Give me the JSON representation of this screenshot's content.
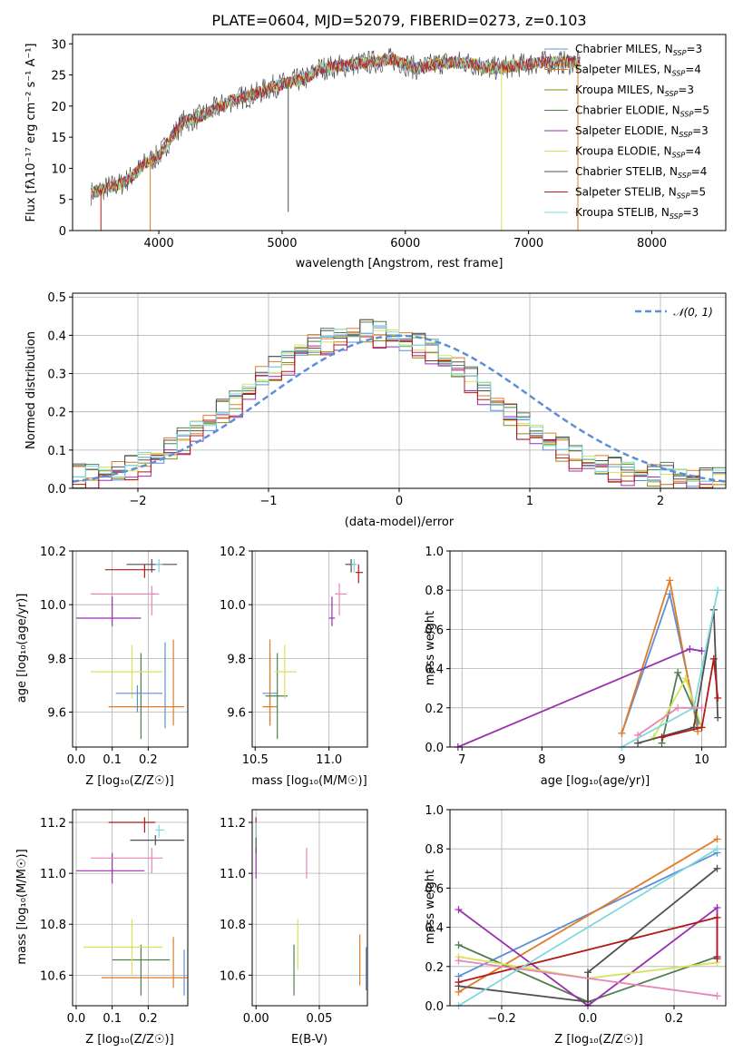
{
  "page_title": "PLATE=0604, MJD=52079, FIBERID=0273, z=0.103",
  "colors": {
    "grid": "#b0b0b0",
    "series": [
      "#5e8fd6",
      "#e07b26",
      "#8c8c13",
      "#4f7f4f",
      "#9a2fb0",
      "#d7e35a",
      "#505050",
      "#b21a1a",
      "#7fd8e0"
    ],
    "pink": "#e884b8",
    "normal": "#5b8fd6"
  },
  "legend_spectrum": [
    {
      "name": "Chabrier MILES, N",
      "sub": "SSP",
      "suffix": "=3"
    },
    {
      "name": "Salpeter MILES, N",
      "sub": "SSP",
      "suffix": "=4"
    },
    {
      "name": "Kroupa MILES, N",
      "sub": "SSP",
      "suffix": "=3"
    },
    {
      "name": "Chabrier ELODIE, N",
      "sub": "SSP",
      "suffix": "=5"
    },
    {
      "name": "Salpeter ELODIE, N",
      "sub": "SSP",
      "suffix": "=3"
    },
    {
      "name": "Kroupa ELODIE, N",
      "sub": "SSP",
      "suffix": "=4"
    },
    {
      "name": "Chabrier STELIB, N",
      "sub": "SSP",
      "suffix": "=4"
    },
    {
      "name": "Salpeter STELIB, N",
      "sub": "SSP",
      "suffix": "=5"
    },
    {
      "name": "Kroupa STELIB, N",
      "sub": "SSP",
      "suffix": "=3"
    }
  ],
  "legend_hist": "𝒩(0, 1)",
  "axes_labels": {
    "spec_x": "wavelength [Angstrom, rest frame]",
    "spec_y": "Flux [fλ10⁻¹⁷ erg cm⁻² s⁻¹ A⁻¹]",
    "hist_x": "(data-model)/error",
    "hist_y": "Normed distribution",
    "age_y": "age  [log₁₀(age/yr)]",
    "z_x": "Z [log₁₀(Z/Z☉)]",
    "mass_x": "mass [log₁₀(M/M☉)]",
    "mw_y": "mass weight",
    "age_x": "age  [log₁₀(age/yr)]",
    "mass_y": "mass [log₁₀(M/M☉)]",
    "ebv_x": "E(B-V)"
  },
  "chart_data": [
    {
      "type": "line",
      "panel": "spectrum",
      "x_ticks": [
        "4000",
        "5000",
        "6000",
        "7000",
        "8000"
      ],
      "y_ticks": [
        "0",
        "5",
        "10",
        "15",
        "20",
        "25",
        "30"
      ],
      "xlim": [
        3300,
        8600
      ],
      "ylim": [
        0,
        31.5
      ],
      "continuum": {
        "x": [
          3450,
          3600,
          3700,
          3800,
          3900,
          4000,
          4100,
          4200,
          4300,
          4400,
          4500,
          4600,
          4700,
          4800,
          4900,
          5000,
          5100,
          5200,
          5300,
          5500,
          5700,
          5900,
          6100,
          6300,
          6500,
          6700,
          6900,
          7100,
          7300,
          7420
        ],
        "y": [
          6,
          7,
          7.5,
          9,
          11,
          12,
          15,
          17.5,
          18,
          19,
          20,
          21,
          21.5,
          22,
          23,
          23.5,
          24,
          24.5,
          26,
          26.5,
          27,
          27.5,
          26,
          27,
          27,
          26,
          26.5,
          27,
          27,
          27
        ]
      }
    },
    {
      "type": "bar",
      "panel": "residual-histogram",
      "x_ticks": [
        "−2",
        "−1",
        "0",
        "1",
        "2"
      ],
      "y_ticks": [
        "0.0",
        "0.1",
        "0.2",
        "0.3",
        "0.4",
        "0.5"
      ],
      "xlim": [
        -2.5,
        2.5
      ],
      "ylim": [
        0,
        0.51
      ],
      "bin_width": 0.1,
      "model_profile": [
        0.03,
        0.03,
        0.035,
        0.04,
        0.05,
        0.065,
        0.08,
        0.1,
        0.12,
        0.15,
        0.17,
        0.2,
        0.22,
        0.25,
        0.29,
        0.31,
        0.33,
        0.36,
        0.37,
        0.38,
        0.39,
        0.4,
        0.41,
        0.4,
        0.39,
        0.38,
        0.37,
        0.36,
        0.33,
        0.31,
        0.28,
        0.25,
        0.22,
        0.19,
        0.16,
        0.14,
        0.12,
        0.1,
        0.08,
        0.065,
        0.055,
        0.045,
        0.04,
        0.035,
        0.03,
        0.03,
        0.025,
        0.025,
        0.02,
        0.02
      ],
      "series_offsets": [
        0.0,
        0.02,
        -0.015,
        0.03,
        -0.025,
        0.01,
        0.025,
        -0.02,
        0.015
      ],
      "normal": {
        "mu": 0,
        "sigma": 1
      }
    },
    {
      "type": "scatter",
      "panel": "age-vs-Z",
      "xlim": [
        -0.01,
        0.31
      ],
      "ylim": [
        9.47,
        10.2
      ],
      "x_ticks": [
        "0.0",
        "0.1",
        "0.2"
      ],
      "x_tick_vals": [
        0,
        0.1,
        0.2
      ],
      "y_ticks": [
        "9.6",
        "9.8",
        "10.0",
        "10.2"
      ],
      "y_tick_vals": [
        9.6,
        9.8,
        10.0,
        10.2
      ],
      "points": [
        {
          "x": 0.247,
          "y": 9.7,
          "ex": [
            0.247,
            0.247
          ],
          "ey": [
            9.54,
            9.86
          ],
          "c": 0
        },
        {
          "x": 0.27,
          "y": 9.62,
          "ex": [
            0.09,
            0.3
          ],
          "ey": [
            9.55,
            9.87
          ],
          "c": 1
        },
        {
          "x": 0.18,
          "y": 9.66,
          "ex": [
            0.18,
            0.18
          ],
          "ey": [
            9.5,
            9.82
          ],
          "c": 3
        },
        {
          "x": 0.1,
          "y": 9.95,
          "ex": [
            0.0,
            0.18
          ],
          "ey": [
            9.92,
            10.03
          ],
          "c": 4
        },
        {
          "x": 0.155,
          "y": 9.75,
          "ex": [
            0.04,
            0.24
          ],
          "ey": [
            9.65,
            9.85
          ],
          "c": 5
        },
        {
          "x": 0.21,
          "y": 10.15,
          "ex": [
            0.14,
            0.28
          ],
          "ey": [
            10.12,
            10.17
          ],
          "c": 6
        },
        {
          "x": 0.19,
          "y": 10.13,
          "ex": [
            0.08,
            0.22
          ],
          "ey": [
            10.1,
            10.15
          ],
          "c": 7
        },
        {
          "x": 0.23,
          "y": 10.15,
          "ex": [
            0.22,
            0.24
          ],
          "ey": [
            10.12,
            10.17
          ],
          "c": 8
        },
        {
          "x": 0.21,
          "y": 10.04,
          "ex": [
            0.04,
            0.23
          ],
          "ey": [
            9.96,
            10.07
          ],
          "c": 9
        },
        {
          "x": 0.17,
          "y": 9.67,
          "ex": [
            0.11,
            0.24
          ],
          "ey": [
            9.6,
            9.7
          ],
          "c": 0
        }
      ]
    },
    {
      "type": "scatter",
      "panel": "age-vs-mass",
      "xlim": [
        10.48,
        11.26
      ],
      "ylim": [
        9.47,
        10.2
      ],
      "x_ticks": [
        "10.5",
        "11.0"
      ],
      "x_tick_vals": [
        10.5,
        11.0
      ],
      "y_ticks": [
        "9.6",
        "9.8",
        "10.0",
        "10.2"
      ],
      "y_tick_vals": [
        9.6,
        9.8,
        10.0,
        10.2
      ],
      "points": [
        {
          "x": 10.6,
          "y": 9.67,
          "ex": [
            10.55,
            10.65
          ],
          "ey": [
            9.55,
            9.82
          ],
          "c": 0
        },
        {
          "x": 10.6,
          "y": 9.62,
          "ex": [
            10.55,
            10.65
          ],
          "ey": [
            9.55,
            9.87
          ],
          "c": 1
        },
        {
          "x": 10.65,
          "y": 9.66,
          "ex": [
            10.57,
            10.72
          ],
          "ey": [
            9.5,
            9.82
          ],
          "c": 3
        },
        {
          "x": 11.02,
          "y": 9.95,
          "ex": [
            11.0,
            11.04
          ],
          "ey": [
            9.92,
            10.03
          ],
          "c": 4
        },
        {
          "x": 10.7,
          "y": 9.75,
          "ex": [
            10.63,
            10.78
          ],
          "ey": [
            9.65,
            9.85
          ],
          "c": 5
        },
        {
          "x": 11.15,
          "y": 10.15,
          "ex": [
            11.11,
            11.18
          ],
          "ey": [
            10.12,
            10.17
          ],
          "c": 6
        },
        {
          "x": 11.2,
          "y": 10.12,
          "ex": [
            11.18,
            11.23
          ],
          "ey": [
            10.08,
            10.15
          ],
          "c": 7
        },
        {
          "x": 11.17,
          "y": 10.15,
          "ex": [
            11.15,
            11.19
          ],
          "ey": [
            10.12,
            10.17
          ],
          "c": 8
        },
        {
          "x": 11.07,
          "y": 10.04,
          "ex": [
            11.04,
            11.12
          ],
          "ey": [
            9.96,
            10.08
          ],
          "c": 9
        }
      ]
    },
    {
      "type": "line",
      "panel": "mass-weight-vs-age",
      "xlim": [
        6.85,
        10.3
      ],
      "ylim": [
        0,
        1
      ],
      "x_ticks": [
        "7",
        "8",
        "9",
        "10"
      ],
      "x_tick_vals": [
        7,
        8,
        9,
        10
      ],
      "y_ticks": [
        "0.0",
        "0.2",
        "0.4",
        "0.6",
        "0.8",
        "1.0"
      ],
      "y_tick_vals": [
        0,
        0.2,
        0.4,
        0.6,
        0.8,
        1.0
      ],
      "series": [
        {
          "c": 0,
          "x": [
            9.0,
            9.6,
            9.95
          ],
          "y": [
            0.07,
            0.78,
            0.12
          ]
        },
        {
          "c": 1,
          "x": [
            9.0,
            9.6,
            9.95
          ],
          "y": [
            0.07,
            0.85,
            0.08
          ]
        },
        {
          "c": 3,
          "x": [
            9.5,
            9.7,
            10.0
          ],
          "y": [
            0.02,
            0.38,
            0.1
          ]
        },
        {
          "c": 4,
          "x": [
            6.95,
            9.85,
            10.0
          ],
          "y": [
            0.0,
            0.5,
            0.49
          ]
        },
        {
          "c": 5,
          "x": [
            9.4,
            9.8,
            10.0
          ],
          "y": [
            0.05,
            0.35,
            0.1
          ]
        },
        {
          "c": 6,
          "x": [
            9.2,
            9.9,
            10.15,
            10.2
          ],
          "y": [
            0.02,
            0.1,
            0.7,
            0.15
          ]
        },
        {
          "c": 7,
          "x": [
            9.5,
            10.0,
            10.15,
            10.2
          ],
          "y": [
            0.05,
            0.1,
            0.45,
            0.25
          ]
        },
        {
          "c": 8,
          "x": [
            9.0,
            9.9,
            10.2
          ],
          "y": [
            0.0,
            0.2,
            0.8
          ]
        },
        {
          "c": 9,
          "x": [
            9.2,
            9.7,
            10.0
          ],
          "y": [
            0.06,
            0.2,
            0.2
          ]
        }
      ]
    },
    {
      "type": "scatter",
      "panel": "mass-vs-Z",
      "xlim": [
        -0.01,
        0.31
      ],
      "ylim": [
        10.48,
        11.25
      ],
      "x_ticks": [
        "0.0",
        "0.1",
        "0.2"
      ],
      "x_tick_vals": [
        0,
        0.1,
        0.2
      ],
      "y_ticks": [
        "10.6",
        "10.8",
        "11.0",
        "11.2"
      ],
      "y_tick_vals": [
        10.6,
        10.8,
        11.0,
        11.2
      ],
      "points": [
        {
          "x": 0.3,
          "y": 10.58,
          "ex": [
            0.3,
            0.3
          ],
          "ey": [
            10.52,
            10.7
          ],
          "c": 0
        },
        {
          "x": 0.27,
          "y": 10.59,
          "ex": [
            0.07,
            0.31
          ],
          "ey": [
            10.55,
            10.75
          ],
          "c": 1
        },
        {
          "x": 0.18,
          "y": 10.66,
          "ex": [
            0.1,
            0.26
          ],
          "ey": [
            10.52,
            10.72
          ],
          "c": 3
        },
        {
          "x": 0.1,
          "y": 11.01,
          "ex": [
            0.0,
            0.19
          ],
          "ey": [
            10.96,
            11.08
          ],
          "c": 4
        },
        {
          "x": 0.155,
          "y": 10.71,
          "ex": [
            0.02,
            0.24
          ],
          "ey": [
            10.6,
            10.82
          ],
          "c": 5
        },
        {
          "x": 0.22,
          "y": 11.13,
          "ex": [
            0.15,
            0.3
          ],
          "ey": [
            11.11,
            11.15
          ],
          "c": 6
        },
        {
          "x": 0.19,
          "y": 11.2,
          "ex": [
            0.09,
            0.22
          ],
          "ey": [
            11.16,
            11.22
          ],
          "c": 7
        },
        {
          "x": 0.23,
          "y": 11.17,
          "ex": [
            0.22,
            0.245
          ],
          "ey": [
            11.14,
            11.19
          ],
          "c": 8
        },
        {
          "x": 0.21,
          "y": 11.06,
          "ex": [
            0.04,
            0.24
          ],
          "ey": [
            11.0,
            11.1
          ],
          "c": 9
        }
      ]
    },
    {
      "type": "scatter",
      "panel": "mass-vs-EBV",
      "xlim": [
        -0.003,
        0.088
      ],
      "ylim": [
        10.48,
        11.25
      ],
      "x_ticks": [
        "0.00",
        "0.05"
      ],
      "x_tick_vals": [
        0,
        0.05
      ],
      "y_ticks": [
        "10.6",
        "10.8",
        "11.0",
        "11.2"
      ],
      "y_tick_vals": [
        10.6,
        10.8,
        11.0,
        11.2
      ],
      "points": [
        {
          "x": 0.087,
          "y": 10.62,
          "ex": [
            0.087,
            0.087
          ],
          "ey": [
            10.54,
            10.71
          ],
          "c": 0
        },
        {
          "x": 0.082,
          "y": 10.66,
          "ex": [
            0.082,
            0.082
          ],
          "ey": [
            10.56,
            10.76
          ],
          "c": 1
        },
        {
          "x": 0.03,
          "y": 10.63,
          "ex": [
            0.03,
            0.03
          ],
          "ey": [
            10.52,
            10.72
          ],
          "c": 3
        },
        {
          "x": 0.0,
          "y": 11.02,
          "ex": [
            0.0,
            0.0
          ],
          "ey": [
            10.98,
            11.1
          ],
          "c": 4
        },
        {
          "x": 0.033,
          "y": 10.72,
          "ex": [
            0.033,
            0.033
          ],
          "ey": [
            10.62,
            10.82
          ],
          "c": 5
        },
        {
          "x": 0.0,
          "y": 11.12,
          "ex": [
            0.0,
            0.0
          ],
          "ey": [
            11.08,
            11.16
          ],
          "c": 6
        },
        {
          "x": 0.0,
          "y": 11.18,
          "ex": [
            0.0,
            0.0
          ],
          "ey": [
            11.15,
            11.22
          ],
          "c": 7
        },
        {
          "x": 0.0,
          "y": 11.17,
          "ex": [
            0.0,
            0.0
          ],
          "ey": [
            11.14,
            11.2
          ],
          "c": 8
        },
        {
          "x": 0.04,
          "y": 11.03,
          "ex": [
            0.04,
            0.04
          ],
          "ey": [
            10.98,
            11.1
          ],
          "c": 9
        }
      ]
    },
    {
      "type": "line",
      "panel": "mass-weight-vs-Z",
      "xlim": [
        -0.32,
        0.32
      ],
      "ylim": [
        0,
        1
      ],
      "x_ticks": [
        "−0.2",
        "0.0",
        "0.2"
      ],
      "x_tick_vals": [
        -0.2,
        0,
        0.2
      ],
      "y_ticks": [
        "0.0",
        "0.2",
        "0.4",
        "0.6",
        "0.8",
        "1.0"
      ],
      "y_tick_vals": [
        0,
        0.2,
        0.4,
        0.6,
        0.8,
        1.0
      ],
      "series": [
        {
          "c": 0,
          "x": [
            -0.3,
            0.3
          ],
          "y": [
            0.15,
            0.78
          ]
        },
        {
          "c": 1,
          "x": [
            -0.3,
            0.3
          ],
          "y": [
            0.07,
            0.85
          ]
        },
        {
          "c": 3,
          "x": [
            -0.3,
            0.0,
            0.3
          ],
          "y": [
            0.31,
            0.02,
            0.25
          ]
        },
        {
          "c": 4,
          "x": [
            -0.3,
            0.0,
            0.3,
            0.3
          ],
          "y": [
            0.49,
            0.0,
            0.5,
            0.25
          ]
        },
        {
          "c": 5,
          "x": [
            -0.3,
            0.0,
            0.3
          ],
          "y": [
            0.25,
            0.14,
            0.22
          ]
        },
        {
          "c": 6,
          "x": [
            -0.3,
            0.0,
            0.0,
            0.3
          ],
          "y": [
            0.1,
            0.02,
            0.17,
            0.7
          ]
        },
        {
          "c": 7,
          "x": [
            -0.3,
            0.3,
            0.3
          ],
          "y": [
            0.12,
            0.45,
            0.24
          ]
        },
        {
          "c": 8,
          "x": [
            -0.3,
            0.3
          ],
          "y": [
            0.0,
            0.8
          ]
        },
        {
          "c": 9,
          "x": [
            -0.3,
            0.3
          ],
          "y": [
            0.23,
            0.05
          ]
        }
      ]
    }
  ]
}
